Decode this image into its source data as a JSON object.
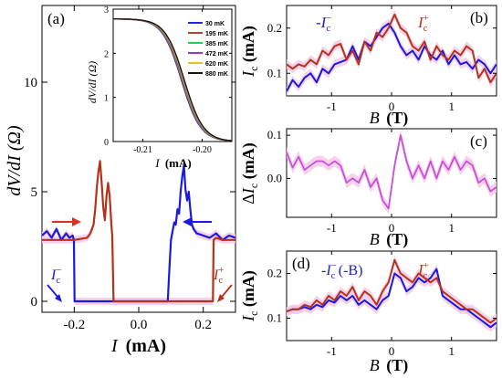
{
  "panel_a": {
    "tag": "(a)",
    "xlabel_var": "I",
    "xlabel_unit": "(mA)",
    "ylabel": "dV/dI (Ω)",
    "annotation_ic_minus": "I",
    "annotation_ic_minus_sub": "c",
    "annotation_ic_minus_sup": "−",
    "annotation_ic_plus": "I",
    "annotation_ic_plus_sub": "c",
    "annotation_ic_plus_sup": "+"
  },
  "inset": {
    "ylabel": "dV/dI (Ω)",
    "xlabel_var": "I",
    "xlabel_unit": "(mA)"
  },
  "panel_b": {
    "tag": "(b)",
    "ylabel": "I_c (mA)",
    "xlabel_var": "B",
    "xlabel_unit": "(T)",
    "label_minus": "-I",
    "label_minus_sub": "c",
    "label_minus_sup": "−",
    "label_plus": "I",
    "label_plus_sub": "c",
    "label_plus_sup": "+"
  },
  "panel_c": {
    "tag": "(c)",
    "ylabel": "ΔI_c (mA)",
    "xlabel_var": "B",
    "xlabel_unit": "(T)"
  },
  "panel_d": {
    "tag": "(d)",
    "ylabel": "I_c (mA)",
    "xlabel_var": "B",
    "xlabel_unit": "(T)",
    "label_minus": "-I",
    "label_minus_sub": "c",
    "label_minus_sup": "−",
    "label_minus_suffix": "(-B)",
    "label_plus": "I",
    "label_plus_sub": "c",
    "label_plus_sup": "+"
  },
  "colors": {
    "blue": "#1a1adb",
    "red": "#b5321a",
    "magenta": "#c84fd8",
    "shade": "#f5c9e6",
    "inset_30": "#2424e6",
    "inset_195": "#c0392b",
    "inset_385": "#2ecc40",
    "inset_472": "#9b30d9",
    "inset_620": "#e6c21a",
    "inset_880": "#111111"
  },
  "chart_data": [
    {
      "id": "a",
      "type": "line",
      "xlim": [
        -0.3,
        0.3
      ],
      "ylim": [
        -0.5,
        13.5
      ],
      "xticks": [
        -0.2,
        0.0,
        0.2
      ],
      "xtick_labels": [
        "-0.2",
        "0.0",
        "0.2"
      ],
      "yticks": [
        0,
        5,
        10
      ],
      "ytick_labels": [
        "0",
        "5",
        "10"
      ],
      "series": [
        {
          "color": "blue",
          "x": [
            -0.3,
            -0.285,
            -0.27,
            -0.255,
            -0.24,
            -0.225,
            -0.215,
            -0.205,
            -0.201,
            -0.199,
            -0.15,
            -0.1,
            -0.05,
            0.0,
            0.05,
            0.09,
            0.095,
            0.1,
            0.105,
            0.11,
            0.115,
            0.12,
            0.125,
            0.13,
            0.135,
            0.14,
            0.145,
            0.15,
            0.155,
            0.16,
            0.165,
            0.17,
            0.18,
            0.2,
            0.22,
            0.24,
            0.26,
            0.28,
            0.3
          ],
          "y": [
            3.0,
            3.2,
            2.9,
            3.3,
            2.8,
            3.1,
            2.9,
            3.0,
            2.8,
            0.0,
            0.0,
            0.0,
            0.0,
            0.0,
            0.0,
            0.0,
            1.5,
            2.8,
            3.2,
            3.6,
            3.5,
            4.2,
            4.0,
            5.0,
            5.7,
            6.2,
            5.1,
            4.6,
            5.0,
            4.2,
            3.5,
            3.3,
            3.1,
            3.0,
            2.9,
            3.1,
            2.8,
            3.0,
            2.9
          ]
        },
        {
          "color": "red",
          "x": [
            -0.3,
            -0.27,
            -0.24,
            -0.2,
            -0.16,
            -0.15,
            -0.14,
            -0.135,
            -0.13,
            -0.125,
            -0.12,
            -0.115,
            -0.11,
            -0.105,
            -0.1,
            -0.095,
            -0.09,
            -0.085,
            -0.082,
            -0.078,
            -0.05,
            0.0,
            0.05,
            0.1,
            0.15,
            0.2,
            0.22,
            0.23,
            0.232,
            0.24,
            0.26,
            0.28,
            0.3
          ],
          "y": [
            2.8,
            2.8,
            2.8,
            2.8,
            2.9,
            3.1,
            3.5,
            4.2,
            5.2,
            5.9,
            6.4,
            5.4,
            4.3,
            3.7,
            4.8,
            5.4,
            4.8,
            3.5,
            3.0,
            0.0,
            0.0,
            0.0,
            0.0,
            0.0,
            0.0,
            0.0,
            0.0,
            0.0,
            2.8,
            2.9,
            2.8,
            2.8,
            2.8
          ]
        }
      ]
    },
    {
      "id": "inset",
      "type": "line",
      "xlim": [
        -0.215,
        -0.195
      ],
      "ylim": [
        0,
        3.0
      ],
      "xticks": [
        -0.21,
        -0.2
      ],
      "xtick_labels": [
        "-0.21",
        "-0.20"
      ],
      "yticks": [
        0,
        1,
        2,
        3
      ],
      "ytick_labels": [
        "0",
        "1",
        "2",
        "3"
      ],
      "legend": [
        "30 mK",
        "195 mK",
        "385 mK",
        "472 mK",
        "620 mK",
        "880 mK"
      ],
      "legend_colors": [
        "inset_30",
        "inset_195",
        "inset_385",
        "inset_472",
        "inset_620",
        "inset_880"
      ]
    },
    {
      "id": "b",
      "type": "line",
      "xlim": [
        -1.75,
        1.75
      ],
      "ylim": [
        0.05,
        0.25
      ],
      "xticks": [
        -1,
        0,
        1
      ],
      "xtick_labels": [
        "-1",
        "0",
        "1"
      ],
      "yticks": [
        0.1,
        0.2
      ],
      "ytick_labels": [
        "0.1",
        "0.2"
      ],
      "series": [
        {
          "color": "blue",
          "x": [
            -1.75,
            -1.65,
            -1.55,
            -1.45,
            -1.35,
            -1.25,
            -1.15,
            -1.05,
            -0.95,
            -0.85,
            -0.75,
            -0.65,
            -0.55,
            -0.45,
            -0.35,
            -0.25,
            -0.15,
            -0.05,
            0.05,
            0.15,
            0.25,
            0.35,
            0.45,
            0.55,
            0.65,
            0.75,
            0.85,
            0.95,
            1.05,
            1.15,
            1.25,
            1.35,
            1.45,
            1.55,
            1.65,
            1.75
          ],
          "y": [
            0.06,
            0.085,
            0.07,
            0.09,
            0.1,
            0.08,
            0.11,
            0.1,
            0.12,
            0.125,
            0.13,
            0.16,
            0.13,
            0.17,
            0.16,
            0.18,
            0.2,
            0.21,
            0.19,
            0.16,
            0.14,
            0.15,
            0.13,
            0.16,
            0.14,
            0.13,
            0.15,
            0.12,
            0.14,
            0.12,
            0.125,
            0.11,
            0.13,
            0.12,
            0.1,
            0.12
          ]
        },
        {
          "color": "red",
          "x": [
            -1.75,
            -1.65,
            -1.55,
            -1.45,
            -1.35,
            -1.25,
            -1.15,
            -1.05,
            -0.95,
            -0.85,
            -0.75,
            -0.65,
            -0.55,
            -0.45,
            -0.35,
            -0.25,
            -0.15,
            -0.05,
            0.05,
            0.15,
            0.25,
            0.35,
            0.45,
            0.55,
            0.65,
            0.75,
            0.85,
            0.95,
            1.05,
            1.15,
            1.25,
            1.35,
            1.45,
            1.55,
            1.65,
            1.75
          ],
          "y": [
            0.12,
            0.11,
            0.12,
            0.115,
            0.13,
            0.12,
            0.15,
            0.14,
            0.16,
            0.165,
            0.13,
            0.15,
            0.12,
            0.17,
            0.15,
            0.19,
            0.18,
            0.2,
            0.23,
            0.2,
            0.19,
            0.16,
            0.15,
            0.17,
            0.13,
            0.16,
            0.14,
            0.13,
            0.15,
            0.14,
            0.16,
            0.15,
            0.09,
            0.11,
            0.08,
            0.1
          ]
        }
      ]
    },
    {
      "id": "c",
      "type": "line",
      "xlim": [
        -1.75,
        1.75
      ],
      "ylim": [
        -0.09,
        0.115
      ],
      "xticks": [
        -1,
        0,
        1
      ],
      "xtick_labels": [
        "-1",
        "0",
        "1"
      ],
      "yticks": [
        -0.1,
        0.0,
        0.1
      ],
      "ytick_labels": [
        "",
        "0.0",
        "0.1"
      ],
      "series": [
        {
          "color": "magenta",
          "x": [
            -1.75,
            -1.65,
            -1.55,
            -1.45,
            -1.35,
            -1.25,
            -1.15,
            -1.05,
            -0.95,
            -0.85,
            -0.75,
            -0.65,
            -0.55,
            -0.45,
            -0.35,
            -0.25,
            -0.15,
            -0.05,
            0.05,
            0.15,
            0.25,
            0.35,
            0.45,
            0.55,
            0.65,
            0.75,
            0.85,
            0.95,
            1.05,
            1.15,
            1.25,
            1.35,
            1.45,
            1.55,
            1.65,
            1.75
          ],
          "y": [
            0.06,
            0.025,
            0.05,
            0.02,
            0.03,
            0.04,
            0.04,
            0.03,
            0.04,
            0.03,
            -0.01,
            0.0,
            -0.01,
            0.02,
            -0.02,
            0.0,
            -0.05,
            -0.07,
            0.03,
            0.1,
            0.04,
            0.0,
            0.03,
            0.0,
            0.04,
            0.0,
            0.04,
            0.02,
            0.05,
            0.02,
            0.04,
            0.03,
            -0.01,
            0.0,
            -0.03,
            -0.02
          ]
        }
      ]
    },
    {
      "id": "d",
      "type": "line",
      "xlim": [
        -1.75,
        1.75
      ],
      "ylim": [
        0.05,
        0.25
      ],
      "xticks": [
        -1,
        0,
        1
      ],
      "xtick_labels": [
        "-1",
        "0",
        "1"
      ],
      "yticks": [
        0.1,
        0.2
      ],
      "ytick_labels": [
        "0.1",
        "0.2"
      ],
      "series": [
        {
          "color": "blue",
          "x": [
            -1.75,
            -1.65,
            -1.55,
            -1.45,
            -1.35,
            -1.25,
            -1.15,
            -1.05,
            -0.95,
            -0.85,
            -0.75,
            -0.65,
            -0.55,
            -0.45,
            -0.35,
            -0.25,
            -0.15,
            -0.05,
            0.05,
            0.15,
            0.25,
            0.35,
            0.45,
            0.55,
            0.65,
            0.75,
            0.85,
            0.95,
            1.05,
            1.15,
            1.25,
            1.35,
            1.45,
            1.55,
            1.65,
            1.75
          ],
          "y": [
            0.115,
            0.12,
            0.12,
            0.125,
            0.12,
            0.13,
            0.125,
            0.14,
            0.135,
            0.15,
            0.14,
            0.15,
            0.13,
            0.14,
            0.13,
            0.12,
            0.14,
            0.15,
            0.2,
            0.19,
            0.16,
            0.17,
            0.19,
            0.18,
            0.19,
            0.21,
            0.15,
            0.14,
            0.13,
            0.12,
            0.12,
            0.11,
            0.1,
            0.09,
            0.08,
            0.09
          ]
        },
        {
          "color": "red",
          "x": [
            -1.75,
            -1.65,
            -1.55,
            -1.45,
            -1.35,
            -1.25,
            -1.15,
            -1.05,
            -0.95,
            -0.85,
            -0.75,
            -0.65,
            -0.55,
            -0.45,
            -0.35,
            -0.25,
            -0.15,
            -0.05,
            0.05,
            0.15,
            0.25,
            0.35,
            0.45,
            0.55,
            0.65,
            0.75,
            0.85,
            0.95,
            1.05,
            1.15,
            1.25,
            1.35,
            1.45,
            1.55,
            1.65,
            1.75
          ],
          "y": [
            0.115,
            0.12,
            0.12,
            0.13,
            0.125,
            0.14,
            0.13,
            0.15,
            0.14,
            0.16,
            0.15,
            0.17,
            0.14,
            0.16,
            0.15,
            0.13,
            0.16,
            0.18,
            0.23,
            0.2,
            0.19,
            0.18,
            0.2,
            0.19,
            0.18,
            0.19,
            0.16,
            0.15,
            0.14,
            0.13,
            0.12,
            0.12,
            0.11,
            0.1,
            0.09,
            0.1
          ]
        }
      ]
    }
  ]
}
